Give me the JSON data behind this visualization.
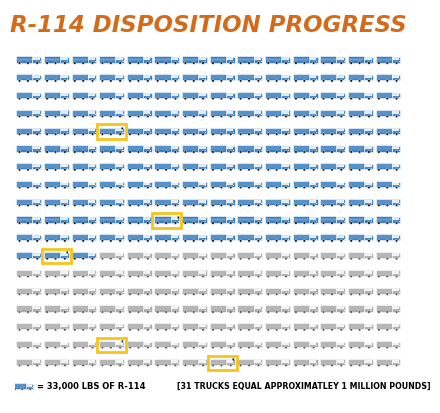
{
  "title": "R-114 DISPOSITION PROGRESS",
  "title_color": "#D46B1A",
  "background_color": "#FFFFFF",
  "grid_cols": 14,
  "grid_rows": 18,
  "total_trucks": 252,
  "blue_trucks": 157,
  "highlighted_trucks": [
    {
      "row": 4,
      "col": 3
    },
    {
      "row": 9,
      "col": 5
    },
    {
      "row": 11,
      "col": 1
    },
    {
      "row": 16,
      "col": 3
    },
    {
      "row": 17,
      "col": 7
    }
  ],
  "blue_color": "#3A7FC1",
  "gray_color": "#AAAAAA",
  "highlight_color": "#F5C518",
  "legend_text": "= 33,000 LBS OF R-114",
  "legend_text2": "[31 TRUCKS EQUAL APPROXIMATLEY 1 MILLION POUNDS]",
  "legend_fontsize": 6.0,
  "title_fontsize": 16.5
}
